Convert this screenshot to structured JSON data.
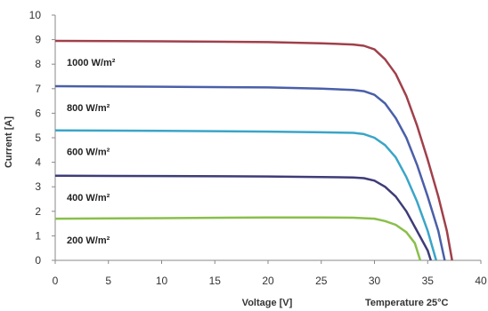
{
  "chart_data": {
    "type": "line",
    "xlabel": "Voltage [V]",
    "ylabel": "Current [A]",
    "annotation": "Temperature 25°C",
    "xlim": [
      0,
      40
    ],
    "ylim": [
      0,
      10
    ],
    "x_ticks": [
      "0",
      "5",
      "10",
      "15",
      "20",
      "25",
      "30",
      "35",
      "40"
    ],
    "y_ticks": [
      "0",
      "1",
      "2",
      "3",
      "4",
      "5",
      "6",
      "7",
      "8",
      "9",
      "10"
    ],
    "grid": false,
    "series": [
      {
        "name": "1000 W/m²",
        "color": "#a0404a",
        "points": [
          [
            0,
            8.95
          ],
          [
            10,
            8.93
          ],
          [
            20,
            8.9
          ],
          [
            25,
            8.85
          ],
          [
            28,
            8.8
          ],
          [
            29,
            8.75
          ],
          [
            30,
            8.6
          ],
          [
            31,
            8.2
          ],
          [
            32,
            7.6
          ],
          [
            33,
            6.7
          ],
          [
            34,
            5.5
          ],
          [
            35,
            4.1
          ],
          [
            36,
            2.6
          ],
          [
            36.8,
            1.2
          ],
          [
            37.3,
            0
          ]
        ]
      },
      {
        "name": "800 W/m²",
        "color": "#4a5fa8",
        "points": [
          [
            0,
            7.1
          ],
          [
            10,
            7.08
          ],
          [
            20,
            7.05
          ],
          [
            25,
            7.0
          ],
          [
            28,
            6.95
          ],
          [
            29,
            6.9
          ],
          [
            30,
            6.75
          ],
          [
            31,
            6.4
          ],
          [
            32,
            5.8
          ],
          [
            33,
            5.0
          ],
          [
            34,
            3.9
          ],
          [
            35,
            2.6
          ],
          [
            36,
            1.2
          ],
          [
            36.6,
            0
          ]
        ]
      },
      {
        "name": "600 W/m²",
        "color": "#3aa5c8",
        "points": [
          [
            0,
            5.3
          ],
          [
            10,
            5.28
          ],
          [
            20,
            5.25
          ],
          [
            25,
            5.22
          ],
          [
            28,
            5.2
          ],
          [
            29,
            5.15
          ],
          [
            30,
            5.0
          ],
          [
            31,
            4.7
          ],
          [
            32,
            4.2
          ],
          [
            33,
            3.4
          ],
          [
            34,
            2.4
          ],
          [
            35,
            1.2
          ],
          [
            35.8,
            0
          ]
        ]
      },
      {
        "name": "400 W/m²",
        "color": "#3e3c78",
        "points": [
          [
            0,
            3.45
          ],
          [
            10,
            3.44
          ],
          [
            20,
            3.42
          ],
          [
            25,
            3.4
          ],
          [
            28,
            3.38
          ],
          [
            29,
            3.35
          ],
          [
            30,
            3.25
          ],
          [
            31,
            3.0
          ],
          [
            32,
            2.6
          ],
          [
            33,
            2.0
          ],
          [
            34,
            1.2
          ],
          [
            35,
            0.4
          ],
          [
            35.3,
            0
          ]
        ]
      },
      {
        "name": "200 W/m²",
        "color": "#8abf4a",
        "points": [
          [
            0,
            1.7
          ],
          [
            10,
            1.72
          ],
          [
            20,
            1.75
          ],
          [
            25,
            1.75
          ],
          [
            28,
            1.74
          ],
          [
            30,
            1.7
          ],
          [
            31,
            1.6
          ],
          [
            32,
            1.45
          ],
          [
            33,
            1.15
          ],
          [
            33.8,
            0.7
          ],
          [
            34.3,
            0
          ]
        ]
      }
    ]
  }
}
